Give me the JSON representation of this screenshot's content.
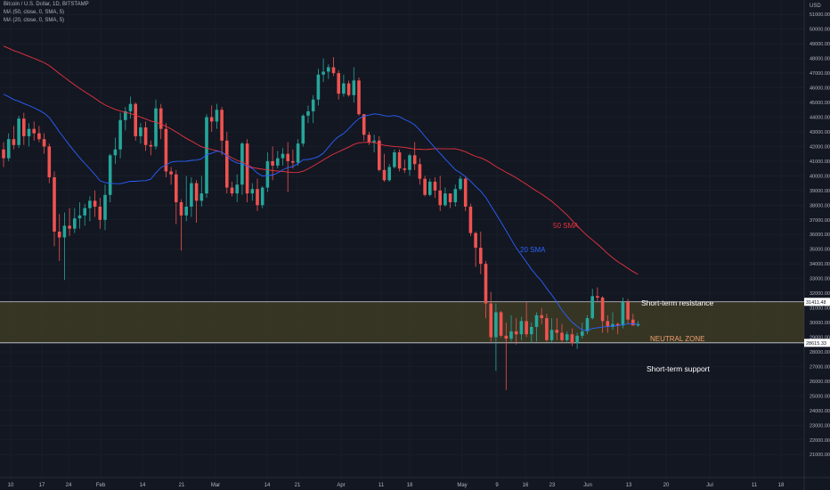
{
  "header": {
    "title": "Bitcoin / U.S. Dollar, 1D, BITSTAMP",
    "ma50": "MA (50, close, 0, SMA, 5)",
    "ma20": "MA (20, close, 0, SMA, 5)"
  },
  "chart_data": {
    "type": "candlestick",
    "currency": "USD",
    "ylim": [
      20000,
      52000
    ],
    "y_ticks": [
      21000,
      22000,
      23000,
      24000,
      25000,
      26000,
      27000,
      28000,
      29000,
      30000,
      31000,
      32000,
      33000,
      34000,
      35000,
      36000,
      37000,
      38000,
      39000,
      40000,
      41000,
      42000,
      43000,
      44000,
      45000,
      46000,
      47000,
      48000,
      49000,
      50000,
      51000
    ],
    "x_labels": [
      "10",
      "17",
      "24",
      "Feb",
      "14",
      "21",
      "Mar",
      "14",
      "21",
      "Apr",
      "11",
      "18",
      "May",
      "9",
      "16",
      "23",
      "Jun",
      "13",
      "20",
      "Jul",
      "11",
      "18"
    ],
    "resistance": {
      "price": 31411.48,
      "price_label": "31411.48",
      "text": "Short-term resistance"
    },
    "support": {
      "price": 28615.33,
      "price_label": "28615.33",
      "text": "Short-term support"
    },
    "zone_label": "NEUTRAL ZONE",
    "sma50_label": "50 SMA",
    "sma20_label": "20 SMA",
    "colors": {
      "up": "#26a69a",
      "down": "#ef5350",
      "sma20": "#2962ff",
      "sma50": "#e8333f",
      "zone": "#3d3b24"
    },
    "candles": [
      [
        41800,
        42300,
        40600,
        41200
      ],
      [
        41200,
        42900,
        41000,
        42500
      ],
      [
        42500,
        43400,
        41800,
        42100
      ],
      [
        42100,
        44100,
        41900,
        43900
      ],
      [
        43900,
        44300,
        42100,
        42700
      ],
      [
        42700,
        43600,
        42000,
        43200
      ],
      [
        43200,
        43700,
        42400,
        42900
      ],
      [
        42900,
        43400,
        42300,
        42500
      ],
      [
        42500,
        42900,
        41500,
        42000
      ],
      [
        42000,
        42200,
        39500,
        39900
      ],
      [
        39900,
        40300,
        35200,
        36200
      ],
      [
        36200,
        37400,
        34200,
        35800
      ],
      [
        35800,
        37500,
        32900,
        36600
      ],
      [
        36600,
        37800,
        35900,
        36400
      ],
      [
        36400,
        37800,
        36100,
        37100
      ],
      [
        37100,
        38200,
        36400,
        37300
      ],
      [
        37300,
        38100,
        36600,
        37800
      ],
      [
        37800,
        38600,
        36900,
        38300
      ],
      [
        38300,
        39000,
        37200,
        37900
      ],
      [
        37900,
        38500,
        36400,
        37000
      ],
      [
        37000,
        39400,
        36300,
        38700
      ],
      [
        38700,
        41500,
        38200,
        41400
      ],
      [
        41400,
        42600,
        40800,
        41800
      ],
      [
        41800,
        44300,
        41200,
        43800
      ],
      [
        43800,
        44700,
        43100,
        44400
      ],
      [
        44400,
        45400,
        43900,
        44900
      ],
      [
        44900,
        45000,
        42400,
        42700
      ],
      [
        42700,
        43600,
        42200,
        43300
      ],
      [
        43300,
        43700,
        41700,
        42100
      ],
      [
        42100,
        42400,
        41400,
        42000
      ],
      [
        42000,
        45200,
        41800,
        44600
      ],
      [
        44600,
        44900,
        42500,
        43200
      ],
      [
        43200,
        43600,
        39900,
        40300
      ],
      [
        40300,
        40600,
        39400,
        40100
      ],
      [
        40100,
        40400,
        36700,
        38200
      ],
      [
        38200,
        38400,
        34900,
        37300
      ],
      [
        37300,
        40000,
        36900,
        37900
      ],
      [
        37900,
        39900,
        37200,
        39500
      ],
      [
        39500,
        39700,
        36800,
        38300
      ],
      [
        38300,
        40000,
        37900,
        38800
      ],
      [
        38800,
        44200,
        38500,
        44000
      ],
      [
        44000,
        44800,
        43000,
        43700
      ],
      [
        43700,
        44900,
        43200,
        44500
      ],
      [
        44500,
        44700,
        41400,
        42400
      ],
      [
        42400,
        43000,
        38800,
        39200
      ],
      [
        39200,
        39600,
        38600,
        38800
      ],
      [
        38800,
        40100,
        38200,
        39400
      ],
      [
        39400,
        42300,
        38700,
        42200
      ],
      [
        42200,
        42500,
        38200,
        38800
      ],
      [
        38800,
        39500,
        38300,
        39100
      ],
      [
        39100,
        39800,
        37600,
        38000
      ],
      [
        38000,
        39300,
        37800,
        39200
      ],
      [
        39200,
        41600,
        38900,
        41000
      ],
      [
        41000,
        42000,
        39700,
        40700
      ],
      [
        40700,
        41700,
        40500,
        41200
      ],
      [
        41200,
        41900,
        40700,
        41500
      ],
      [
        41500,
        42300,
        38900,
        41000
      ],
      [
        41000,
        41800,
        40500,
        40900
      ],
      [
        40900,
        42500,
        40700,
        42200
      ],
      [
        42200,
        44200,
        42000,
        44100
      ],
      [
        44100,
        44800,
        43600,
        44400
      ],
      [
        44400,
        45500,
        43600,
        45200
      ],
      [
        45200,
        47300,
        44800,
        46900
      ],
      [
        46900,
        48000,
        46400,
        47100
      ],
      [
        47100,
        47600,
        46600,
        47400
      ],
      [
        47400,
        48100,
        46800,
        47000
      ],
      [
        47000,
        47200,
        45200,
        45600
      ],
      [
        45600,
        46900,
        45400,
        46300
      ],
      [
        46300,
        46500,
        45400,
        45500
      ],
      [
        45500,
        47400,
        45000,
        46500
      ],
      [
        46500,
        46700,
        44100,
        44200
      ],
      [
        44200,
        44200,
        42400,
        42800
      ],
      [
        42800,
        43000,
        42100,
        42300
      ],
      [
        42300,
        42800,
        41600,
        42400
      ],
      [
        42400,
        42700,
        40300,
        40400
      ],
      [
        40400,
        41500,
        39600,
        39700
      ],
      [
        39700,
        40800,
        39600,
        40600
      ],
      [
        40600,
        41800,
        40500,
        41600
      ],
      [
        41600,
        41800,
        40300,
        40500
      ],
      [
        40500,
        41100,
        40200,
        40400
      ],
      [
        40400,
        41500,
        40000,
        41400
      ],
      [
        41400,
        42300,
        40400,
        40800
      ],
      [
        40800,
        41200,
        39400,
        39800
      ],
      [
        39800,
        40000,
        38600,
        38700
      ],
      [
        38700,
        39800,
        38600,
        39600
      ],
      [
        39600,
        39900,
        38500,
        39000
      ],
      [
        39000,
        40000,
        37600,
        38000
      ],
      [
        38000,
        39200,
        37900,
        38800
      ],
      [
        38800,
        38800,
        37800,
        38200
      ],
      [
        38200,
        39400,
        37900,
        39100
      ],
      [
        39100,
        40000,
        39000,
        39800
      ],
      [
        39800,
        39900,
        37600,
        37900
      ],
      [
        37900,
        38100,
        35900,
        36100
      ],
      [
        36100,
        36200,
        33800,
        35100
      ],
      [
        35100,
        36200,
        33300,
        34000
      ],
      [
        34000,
        34200,
        30300,
        31300
      ],
      [
        31300,
        32100,
        28700,
        29000
      ],
      [
        29000,
        31300,
        26700,
        30700
      ],
      [
        30700,
        30800,
        29000,
        29100
      ],
      [
        29100,
        30000,
        25400,
        28900
      ],
      [
        28900,
        30500,
        28700,
        29400
      ],
      [
        29400,
        30300,
        28500,
        29200
      ],
      [
        29200,
        30400,
        28800,
        30100
      ],
      [
        30100,
        31400,
        29000,
        29200
      ],
      [
        29200,
        30000,
        28600,
        29700
      ],
      [
        29700,
        30700,
        28700,
        30500
      ],
      [
        30500,
        31000,
        29900,
        30300
      ],
      [
        30300,
        30600,
        28700,
        28800
      ],
      [
        28800,
        30300,
        28600,
        29500
      ],
      [
        29500,
        30300,
        28800,
        29300
      ],
      [
        29300,
        29900,
        28600,
        28800
      ],
      [
        28800,
        29400,
        28600,
        29200
      ],
      [
        29200,
        29600,
        28400,
        28600
      ],
      [
        28600,
        29300,
        28200,
        29100
      ],
      [
        29100,
        30000,
        28900,
        29400
      ],
      [
        29400,
        30500,
        29200,
        30300
      ],
      [
        30300,
        32300,
        30200,
        31800
      ],
      [
        31800,
        32400,
        31400,
        31700
      ],
      [
        31700,
        31800,
        29300,
        30100
      ],
      [
        30100,
        30500,
        29300,
        29700
      ],
      [
        29700,
        30700,
        29500,
        29900
      ],
      [
        29900,
        30000,
        29200,
        29800
      ],
      [
        29800,
        31700,
        29600,
        31400
      ],
      [
        31400,
        31600,
        29900,
        30200
      ],
      [
        30200,
        30600,
        29800,
        29800
      ],
      [
        29800,
        30100,
        29700,
        29900
      ]
    ]
  }
}
